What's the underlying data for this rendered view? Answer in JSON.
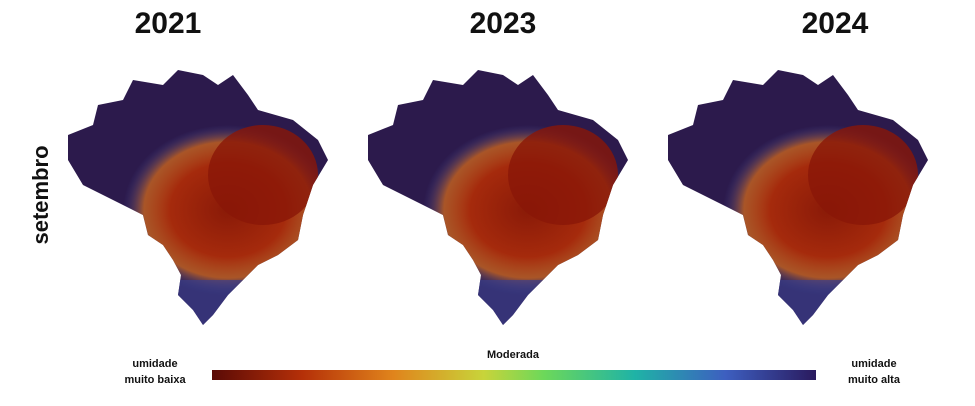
{
  "panels": [
    {
      "title": "2021"
    },
    {
      "title": "2023"
    },
    {
      "title": "2024"
    }
  ],
  "row_label": "setembro",
  "legend": {
    "low_label": [
      "umidade",
      "muito baixa"
    ],
    "mid_label": "Moderada",
    "high_label": [
      "umidade",
      "muito alta"
    ]
  }
}
